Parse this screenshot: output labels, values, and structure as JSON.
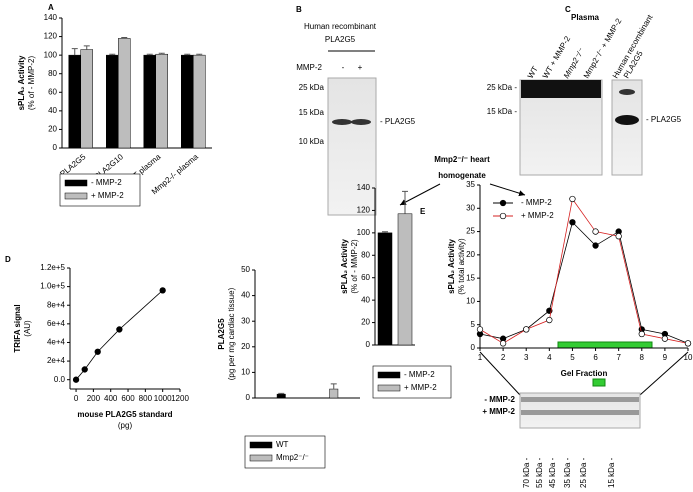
{
  "panel_letters": [
    "A",
    "B",
    "C",
    "D",
    "E"
  ],
  "blot_b": {
    "header": [
      "Human recombinant",
      "PLA2G5"
    ],
    "treatment": "MMP-2",
    "lanes": [
      "-",
      "+"
    ],
    "markers": [
      "25 kDa",
      "15 kDa",
      "10 kDa"
    ],
    "band": "- PLA2G5"
  },
  "blot_c": {
    "header": "Plasma",
    "lanes": [
      "WT",
      "WT + MMP-2",
      "Mmp2⁻/⁻",
      "Mmp2⁻/⁻ + MMP-2",
      "Human recombinant",
      "PLA2G5"
    ],
    "markers": [
      "25 kDa -",
      "15 kDa -"
    ],
    "band": "- PLA2G5"
  },
  "panel_e": {
    "header": [
      "Mmp2⁻/⁻ heart",
      "homogenate"
    ]
  },
  "blot_e": {
    "rows": [
      "- MMP-2",
      "+ MMP-2"
    ],
    "markers": [
      "70 kDa -",
      "55 kDa -",
      "45 kDa -",
      "35 kDa -",
      "25 kDa -",
      "15 kDa -"
    ]
  },
  "chart_data": [
    {
      "type": "bar",
      "ylabel": [
        "sPLA₂ Activity",
        "(% of - MMP-2)"
      ],
      "categories": [
        "PLA2G5",
        "PLA2G10",
        "WT plasma",
        "Mmp2-/- plasma"
      ],
      "series": [
        {
          "name": "- MMP-2",
          "color": "#000000",
          "values": [
            100,
            100,
            100,
            100
          ],
          "errors": [
            7,
            1,
            1,
            1
          ]
        },
        {
          "name": "+ MMP-2",
          "color": "#bdbdbd",
          "values": [
            106,
            118,
            101,
            100
          ],
          "errors": [
            4,
            1,
            1,
            1
          ]
        }
      ],
      "ylim": [
        0,
        140
      ],
      "yticks": [
        0,
        20,
        40,
        60,
        80,
        100,
        120,
        140
      ]
    },
    {
      "type": "line",
      "ylabel": [
        "TRIFA signal",
        "(AU)"
      ],
      "xlabel": [
        "mouse PLA2G5 standard",
        "(pg)"
      ],
      "x": [
        0,
        100,
        250,
        500,
        1000
      ],
      "series": [
        {
          "color": "#000000",
          "values": [
            0,
            11000,
            30000,
            54000,
            96000
          ]
        }
      ],
      "xlim": [
        -70,
        1200
      ],
      "xticks": [
        0,
        200,
        400,
        600,
        800,
        1000,
        1200
      ],
      "ylim": [
        -10000,
        120000
      ],
      "yticks": [
        {
          "value": 0,
          "label": "0.0"
        },
        {
          "value": 20000,
          "label": "2e+4"
        },
        {
          "value": 40000,
          "label": "4e+4"
        },
        {
          "value": 60000,
          "label": "6e+4"
        },
        {
          "value": 80000,
          "label": "8e+4"
        },
        {
          "value": 100000,
          "label": "1.0e+5"
        },
        {
          "value": 120000,
          "label": "1.2e+5"
        }
      ]
    },
    {
      "type": "bar",
      "ylabel": [
        "PLA2G5",
        "(pg per mg cardiac tissue)"
      ],
      "categories": [
        null
      ],
      "series": [
        {
          "name": "WT",
          "color": "#000000",
          "values": [
            1.5
          ],
          "errors": [
            0.3
          ]
        },
        {
          "name": "Mmp2⁻/⁻",
          "color": "#bdbdbd",
          "values": [
            3.5
          ],
          "errors": [
            2
          ]
        }
      ],
      "ylim": [
        0,
        50
      ],
      "yticks": [
        0,
        10,
        20,
        30,
        40,
        50
      ]
    },
    {
      "type": "bar",
      "ylabel": [
        "sPLA₂ Activity",
        "(% of - MMP-2)"
      ],
      "categories": [
        null
      ],
      "series": [
        {
          "name": "- MMP-2",
          "color": "#000000",
          "values": [
            100
          ],
          "errors": [
            1
          ]
        },
        {
          "name": "+ MMP-2",
          "color": "#bdbdbd",
          "values": [
            117
          ],
          "errors": [
            20
          ]
        }
      ],
      "ylim": [
        0,
        140
      ],
      "yticks": [
        0,
        20,
        40,
        60,
        80,
        100,
        120,
        140
      ]
    },
    {
      "type": "line",
      "ylabel": [
        "sPLA₂ Activity",
        "(% total activity)"
      ],
      "xlabel": [
        "Gel Fraction"
      ],
      "x": [
        1,
        2,
        3,
        4,
        5,
        6,
        7,
        8,
        9,
        10
      ],
      "series": [
        {
          "name": "- MMP-2",
          "color": "#000000",
          "marker": "#000000",
          "values": [
            3,
            2,
            4,
            8,
            27,
            22,
            25,
            4,
            3,
            1
          ]
        },
        {
          "name": "+ MMP-2",
          "color": "#d62020",
          "marker": "#ffffff",
          "values": [
            4,
            1,
            4,
            6,
            32,
            25,
            24,
            3,
            2,
            1
          ]
        }
      ],
      "xlim": [
        1,
        10
      ],
      "xticks": [
        1,
        2,
        3,
        4,
        5,
        6,
        7,
        8,
        9,
        10
      ],
      "ylim": [
        0,
        35
      ],
      "yticks": [
        0,
        5,
        10,
        15,
        20,
        25,
        30,
        35
      ],
      "legend": "upper left"
    }
  ]
}
